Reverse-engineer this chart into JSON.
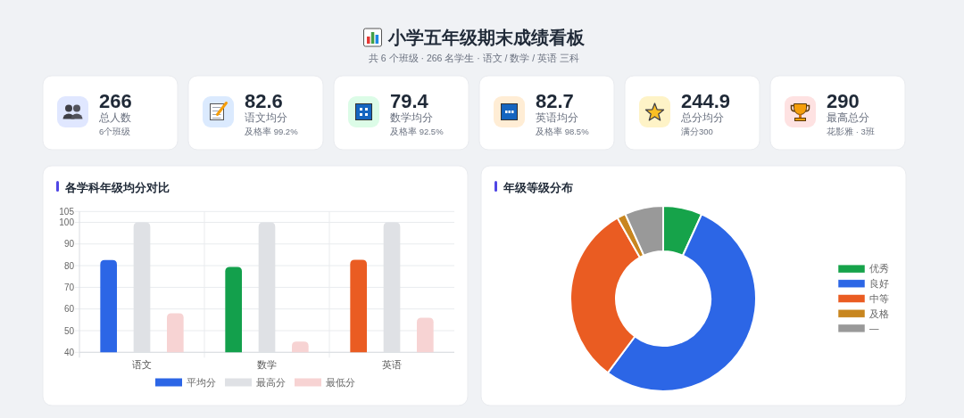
{
  "chart_data": [
    {
      "type": "other",
      "title": "小学五年级期末成绩看板",
      "subtitle": "共 6 个班级 · 266 名学生 · 语文 / 数学 / 英语 三科",
      "annotations": [
        "266",
        "总人数",
        "6个班级",
        "82.6",
        "语文均分",
        "及格率 99.2%",
        "79.4",
        "数学均分",
        "及格率 92.5%",
        "82.7",
        "英语均分",
        "及格率 98.5%",
        "244.9",
        "总分均分",
        "满分300",
        "290",
        "最高总分",
        "花影雅 · 3班"
      ]
    },
    {
      "type": "bar",
      "title": "各学科年级均分对比",
      "categories": [
        "语文",
        "数学",
        "英语"
      ],
      "series": [
        {
          "name": "平均分",
          "color": "#2c66e6",
          "colors": [
            "#2c66e6",
            "#13a04c",
            "#ea5c22"
          ],
          "values": [
            82.6,
            79.4,
            82.7
          ]
        },
        {
          "name": "最高分",
          "color": "#dfe1e5",
          "values": [
            100,
            100,
            100
          ]
        },
        {
          "name": "最低分",
          "color": "#f7d3d3",
          "values": [
            58,
            45,
            56
          ]
        }
      ],
      "ylim": [
        40,
        105
      ],
      "yticks": [
        40,
        50,
        60,
        70,
        80,
        90,
        100,
        105
      ],
      "grid": true,
      "legend": "bottom"
    },
    {
      "type": "donut",
      "title": "年级等级分布",
      "categories": [
        "优秀",
        "良好",
        "中等",
        "及格",
        "—"
      ],
      "values": [
        6.8,
        53.4,
        31.6,
        1.5,
        6.7
      ],
      "colors": [
        "#16a34a",
        "#2c66e6",
        "#ea5c22",
        "#c8861f",
        "#999999"
      ],
      "legend": "right"
    }
  ]
}
